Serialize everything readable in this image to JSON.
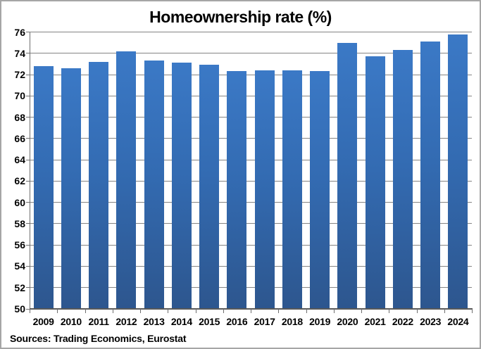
{
  "title": "Homeownership rate (%)",
  "source_note": "Sources: Trading Economics, Eurostat",
  "colors": {
    "bar_gradient_top": "#3b79c6",
    "bar_gradient_bottom": "#2d568e",
    "gridline": "#848484",
    "axis": "#595959",
    "text": "#000000",
    "background": "#ffffff",
    "frame_border": "#a6a6a6"
  },
  "chart_data": {
    "type": "bar",
    "title": "Homeownership rate (%)",
    "categories": [
      "2009",
      "2010",
      "2011",
      "2012",
      "2013",
      "2014",
      "2015",
      "2016",
      "2017",
      "2018",
      "2019",
      "2020",
      "2021",
      "2022",
      "2023",
      "2024"
    ],
    "values": [
      72.8,
      72.6,
      73.2,
      74.2,
      73.3,
      73.1,
      72.9,
      72.3,
      72.4,
      72.4,
      72.3,
      75.0,
      73.7,
      74.3,
      75.1,
      75.8
    ],
    "xlabel": "",
    "ylabel": "",
    "ylim": [
      50,
      76
    ],
    "ytick_step": 2,
    "yticks": [
      50,
      52,
      54,
      56,
      58,
      60,
      62,
      64,
      66,
      68,
      70,
      72,
      74,
      76
    ],
    "grid": true,
    "legend": "none",
    "annotation": "Sources: Trading Economics, Eurostat"
  }
}
